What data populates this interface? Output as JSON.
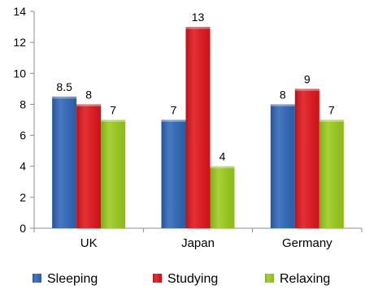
{
  "chart_data": {
    "type": "bar",
    "title": "",
    "xlabel": "",
    "ylabel": "",
    "categories": [
      "UK",
      "Japan",
      "Germany"
    ],
    "series": [
      {
        "name": "Sleeping",
        "values": [
          8.5,
          7,
          8
        ],
        "color": "#2E65B8",
        "data_labels": [
          "8.5",
          "7",
          "8"
        ]
      },
      {
        "name": "Studying",
        "values": [
          8,
          13,
          9
        ],
        "color": "#E0141B",
        "data_labels": [
          "8",
          "13",
          "9"
        ]
      },
      {
        "name": "Relaxing",
        "values": [
          7,
          4,
          7
        ],
        "color": "#9ACB1C",
        "data_labels": [
          "7",
          "4",
          "7"
        ]
      }
    ],
    "ylim": [
      0,
      14
    ],
    "yticks": [
      0,
      2,
      4,
      6,
      8,
      10,
      12,
      14
    ],
    "grid": false,
    "legend_position": "bottom"
  }
}
